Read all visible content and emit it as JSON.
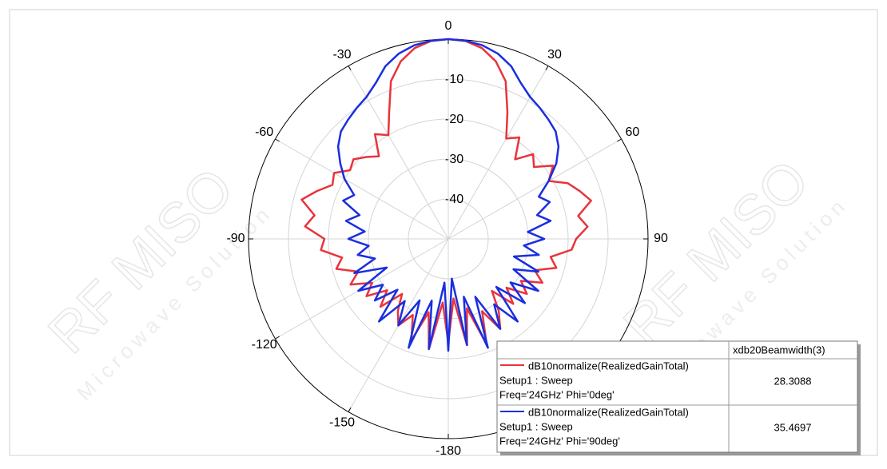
{
  "chart_data": {
    "type": "polar",
    "watermark": [
      "RF MISO",
      "Microwave Solution"
    ],
    "rlim": [
      -50,
      0
    ],
    "rticks": [
      -40,
      -30,
      -20,
      -10
    ],
    "thetaticks": [
      -180,
      -150,
      -120,
      -90,
      -60,
      -30,
      0,
      30,
      60,
      90
    ],
    "theta": [
      -180,
      -175,
      -170,
      -165,
      -160,
      -155,
      -150,
      -145,
      -140,
      -135,
      -130,
      -125,
      -120,
      -115,
      -110,
      -105,
      -100,
      -95,
      -90,
      -85,
      -80,
      -75,
      -70,
      -65,
      -60,
      -55,
      -50,
      -45,
      -40,
      -35,
      -30,
      -25,
      -20,
      -15,
      -10,
      -5,
      0,
      5,
      10,
      15,
      20,
      25,
      30,
      35,
      40,
      45,
      50,
      55,
      60,
      65,
      70,
      75,
      80,
      85,
      90,
      95,
      100,
      105,
      110,
      115,
      120,
      125,
      130,
      135,
      140,
      145,
      150,
      155,
      160,
      165,
      170,
      175
    ],
    "legend_header": "xdb20Beamwidth(3)",
    "series": [
      {
        "name": "dB10normalize(RealizedGainTotal)",
        "setup": "Setup1 : Sweep",
        "variation": "Freq='24GHz' Phi='0deg'",
        "beamwidth": 28.3088,
        "color": "#e8343c",
        "values": [
          -24,
          -34,
          -22,
          -31,
          -23,
          -29,
          -25,
          -28,
          -32,
          -26,
          -30,
          -25,
          -28,
          -23,
          -26,
          -21,
          -23,
          -18,
          -19,
          -14,
          -16,
          -12,
          -15,
          -18,
          -17,
          -20,
          -19,
          -21,
          -23,
          -18,
          -20,
          -15,
          -8,
          -4,
          -1.5,
          -0.3,
          0,
          -0.3,
          -1.5,
          -4,
          -8,
          -15,
          -21,
          -19,
          -24,
          -20,
          -22,
          -18,
          -21,
          -17,
          -15,
          -13,
          -17,
          -15,
          -18,
          -19,
          -24,
          -22,
          -27,
          -24,
          -29,
          -26,
          -31,
          -27,
          -33,
          -28,
          -24,
          -30,
          -22,
          -32,
          -23,
          -35
        ]
      },
      {
        "name": "dB10normalize(RealizedGainTotal)",
        "setup": "Setup1 : Sweep",
        "variation": "Freq='24GHz' Phi='90deg'",
        "beamwidth": 35.4697,
        "color": "#1a2ee0",
        "values": [
          -22,
          -39,
          -22,
          -34,
          -21,
          -33,
          -25,
          -31,
          -23,
          -32,
          -26,
          -30,
          -24,
          -33,
          -25,
          -31,
          -27,
          -30,
          -25,
          -29,
          -24,
          -27,
          -22,
          -24,
          -20,
          -17,
          -14,
          -12,
          -11,
          -10,
          -9,
          -7,
          -4,
          -2,
          -0.8,
          -0.2,
          0,
          -0.2,
          -0.8,
          -2,
          -4,
          -7,
          -9,
          -10,
          -11,
          -12,
          -14,
          -17,
          -21,
          -25,
          -23,
          -27,
          -24,
          -30,
          -26,
          -31,
          -27,
          -33,
          -26,
          -32,
          -24,
          -31,
          -25,
          -33,
          -23,
          -30,
          -24,
          -34,
          -21,
          -35,
          -23,
          -40
        ]
      }
    ]
  }
}
